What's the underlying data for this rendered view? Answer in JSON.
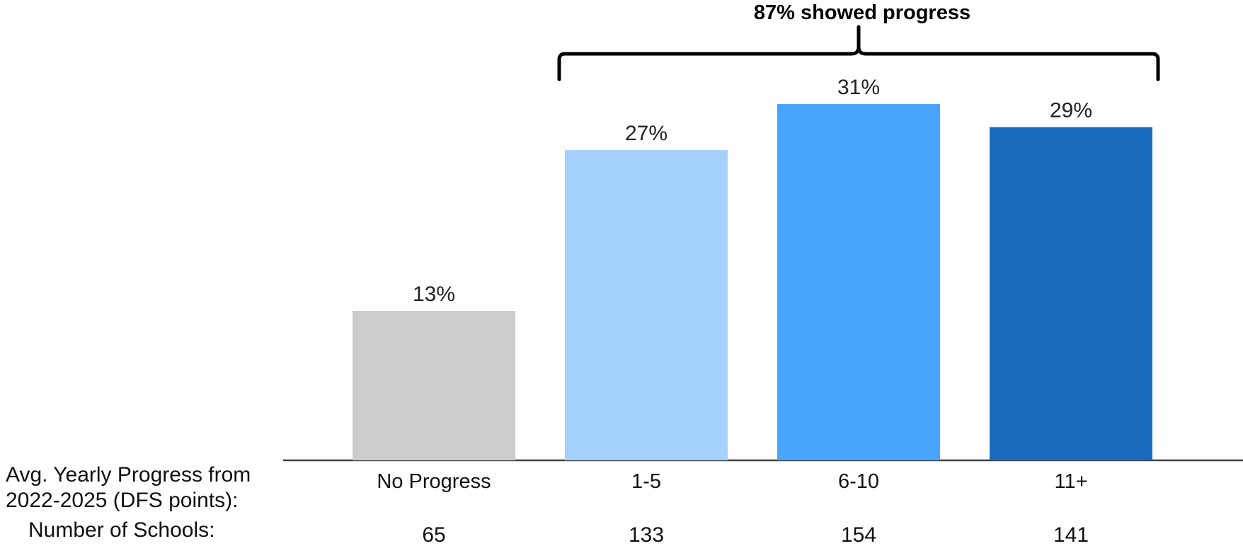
{
  "chart_data": {
    "type": "bar",
    "categories": [
      "No Progress",
      "1-5",
      "6-10",
      "11+"
    ],
    "values": [
      13,
      27,
      31,
      29
    ],
    "value_labels": [
      "13%",
      "27%",
      "31%",
      "29%"
    ],
    "colors": [
      "#cccccc",
      "#a3d1fc",
      "#49a5fc",
      "#196cbd"
    ],
    "title": "",
    "xlabel": "Avg. Yearly Progress from 2022-2025 (DFS points):",
    "ylabel": "",
    "ylim": [
      0,
      31
    ],
    "grid": false,
    "bracket": {
      "label": "87% showed progress",
      "from_category": "1-5",
      "to_category": "11+"
    },
    "extra_row": {
      "label": "Number of Schools:",
      "values": [
        "65",
        "133",
        "154",
        "141"
      ]
    }
  }
}
